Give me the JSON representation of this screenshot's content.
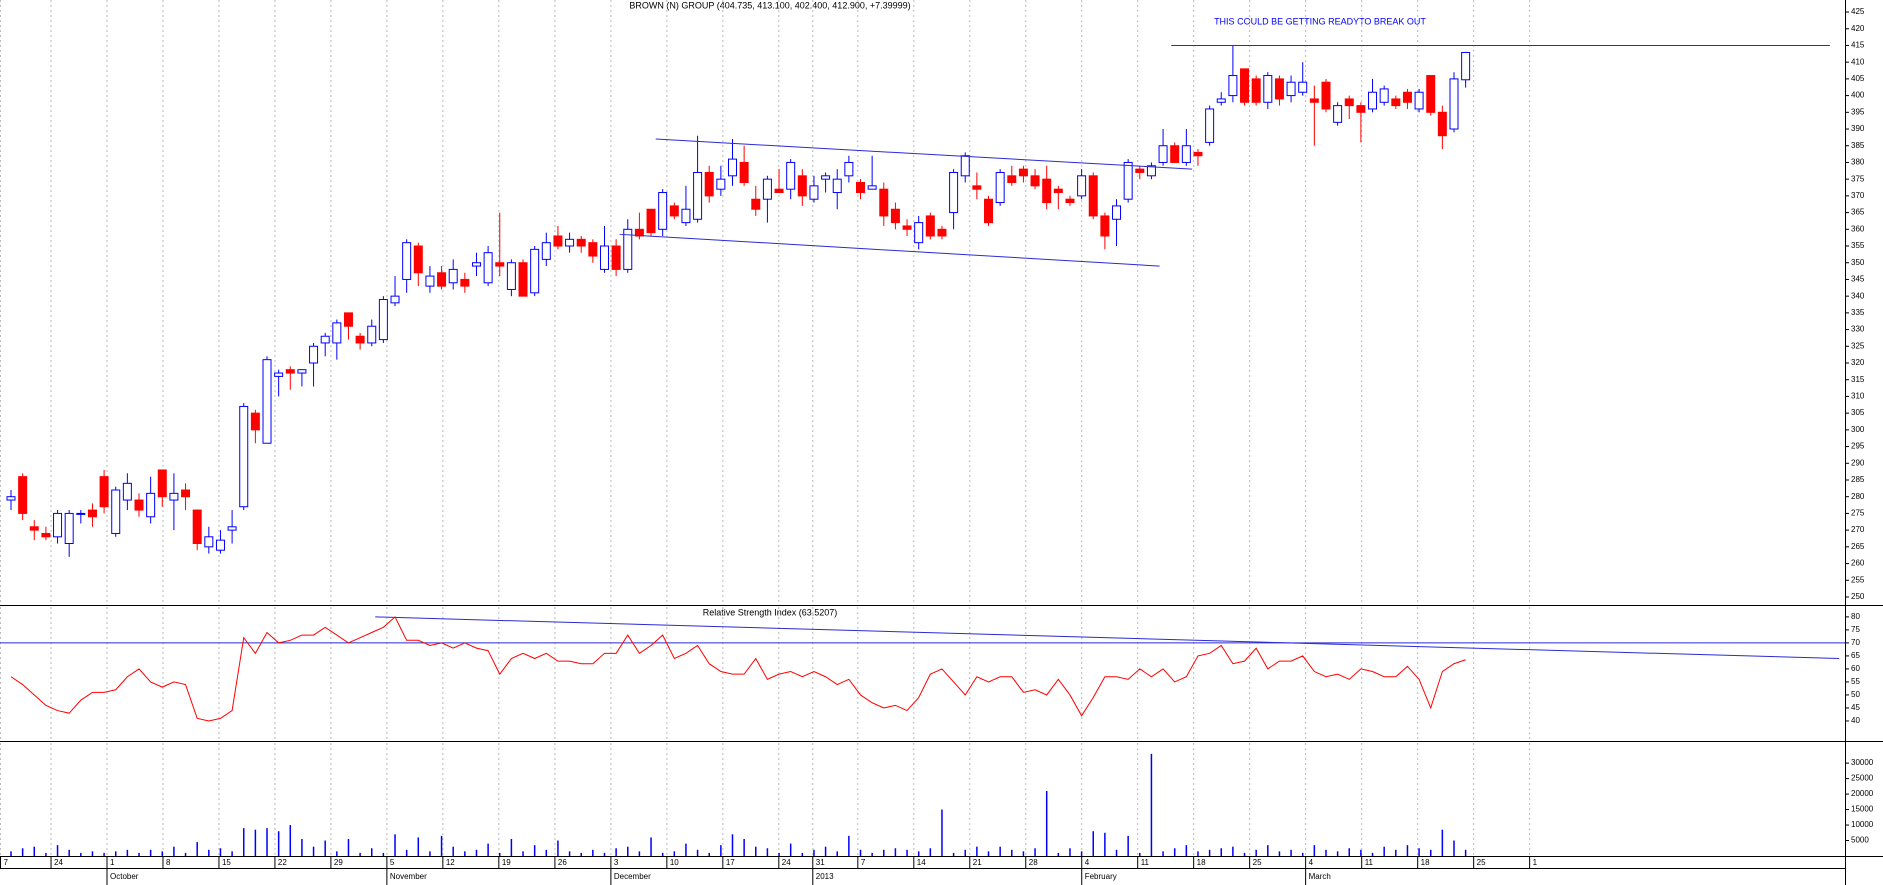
{
  "chart_data": [
    {
      "type": "candlestick",
      "title": "BROWN (N) GROUP (404.735, 413.100, 402.400, 412.900, +7.39999)",
      "annotation": "THIS COULD BE GETTING READYTO BREAK OUT",
      "up_color": "#0000ff",
      "down_color": "#ff0000",
      "trend_color": "#2a2ad6",
      "ylim": [
        247.6,
        428.6
      ],
      "yticks": [
        250,
        255,
        260,
        265,
        270,
        275,
        280,
        285,
        290,
        295,
        300,
        305,
        310,
        315,
        320,
        325,
        330,
        335,
        340,
        345,
        350,
        355,
        360,
        365,
        370,
        375,
        380,
        385,
        390,
        395,
        400,
        405,
        410,
        415,
        420,
        425
      ],
      "series": {
        "open": [
          279,
          286,
          271,
          269,
          268,
          266,
          275,
          276,
          286,
          269,
          279,
          279,
          274,
          288,
          279,
          282,
          276,
          265,
          264,
          270,
          277,
          305,
          296,
          316,
          318,
          317,
          320,
          326,
          326,
          335,
          328,
          326,
          327,
          338,
          345,
          355,
          343,
          347,
          344,
          345,
          349,
          344,
          350,
          342,
          350,
          341,
          351,
          358,
          355,
          357,
          356,
          348,
          355,
          348,
          360,
          366,
          360,
          367,
          362,
          363,
          377,
          372,
          376,
          380,
          369,
          369,
          372,
          372,
          376,
          369,
          375,
          371,
          376,
          374,
          372,
          372,
          366,
          361,
          356,
          364,
          360,
          365,
          376,
          373,
          369,
          368,
          376,
          378,
          376,
          375,
          372,
          369,
          370,
          376,
          364,
          363,
          369,
          378,
          376,
          380,
          385,
          380,
          383,
          386,
          398,
          400,
          408,
          405,
          398,
          405,
          400,
          401,
          399,
          404,
          392,
          399,
          397,
          396,
          398,
          399,
          401,
          396,
          406,
          395,
          390,
          404.735
        ],
        "high": [
          282,
          287,
          273,
          271,
          276,
          276,
          276,
          278,
          288,
          283,
          287,
          281,
          286,
          288,
          287,
          284,
          276,
          271,
          270,
          276,
          308,
          306,
          322,
          318,
          319,
          318,
          326,
          329,
          333,
          335,
          329,
          333,
          340,
          346,
          357,
          356,
          349,
          349,
          351,
          347,
          353,
          355,
          365,
          351,
          351,
          355,
          359,
          361,
          359,
          358,
          357,
          361,
          357,
          363,
          365,
          366,
          372,
          368,
          373,
          388,
          379,
          379,
          387,
          385,
          373,
          376,
          378,
          381,
          378,
          376,
          377,
          378,
          382,
          375,
          382,
          374,
          368,
          363,
          364,
          365,
          361,
          378,
          383,
          377,
          370,
          378,
          379,
          379,
          378,
          379,
          373,
          370,
          378,
          377,
          365,
          369,
          381,
          379,
          380,
          390,
          386,
          390,
          384,
          397,
          401,
          415,
          408,
          406,
          407,
          406,
          406,
          410,
          403,
          405,
          398,
          400,
          398,
          405,
          403,
          400,
          402,
          402,
          406,
          397,
          407,
          413.1
        ],
        "low": [
          276,
          273,
          267,
          267,
          266,
          262,
          272,
          271,
          275,
          268,
          276,
          274,
          272,
          277,
          270,
          276,
          264,
          263,
          263,
          266,
          276,
          296,
          296,
          310,
          312,
          313,
          313,
          322,
          321,
          327,
          324,
          325,
          326,
          337,
          341,
          343,
          341,
          342,
          342,
          341,
          346,
          343,
          346,
          340,
          340,
          340,
          349,
          354,
          353,
          353,
          350,
          347,
          346,
          347,
          357,
          358,
          358,
          363,
          361,
          362,
          368,
          370,
          373,
          373,
          364,
          362,
          371,
          369,
          367,
          368,
          371,
          366,
          374,
          369,
          372,
          361,
          360,
          358,
          354,
          357,
          357,
          360,
          374,
          369,
          361,
          367,
          373,
          374,
          372,
          366,
          366,
          367,
          369,
          363,
          354,
          355,
          368,
          375,
          375,
          379,
          380,
          379,
          379,
          385,
          397,
          398,
          397,
          397,
          396,
          397,
          398,
          400,
          385,
          395,
          391,
          393,
          386,
          395,
          397,
          396,
          396,
          395,
          394,
          384,
          389,
          402.4
        ],
        "close": [
          280,
          275,
          270,
          268,
          275,
          275,
          275,
          274,
          277,
          282,
          284,
          276,
          281,
          280,
          281,
          280,
          266,
          268,
          267,
          271,
          307,
          300,
          321,
          317,
          317,
          318,
          325,
          328,
          332,
          331,
          326,
          331,
          339,
          340,
          356,
          347,
          346,
          343,
          348,
          343,
          350,
          353,
          349,
          350,
          340,
          354,
          356,
          355,
          357,
          355,
          352,
          355,
          348,
          360,
          358,
          359,
          371,
          364,
          366,
          377,
          370,
          375,
          381,
          374,
          366,
          375,
          371,
          380,
          370,
          373,
          376,
          375,
          380,
          371,
          373,
          364,
          362,
          360,
          362,
          358,
          358,
          377,
          382,
          372,
          362,
          377,
          374,
          376,
          373,
          368,
          371,
          368,
          376,
          364,
          358,
          367,
          380,
          377,
          379,
          385,
          380,
          385,
          382,
          396,
          399,
          406,
          398,
          398,
          406,
          399,
          404,
          404,
          398,
          396,
          397,
          397,
          395,
          401,
          402,
          397,
          398,
          401,
          395,
          388,
          405,
          412.9
        ]
      },
      "trendlines": [
        {
          "x": [
            55.4,
            101.5
          ],
          "y": [
            387,
            378
          ]
        },
        {
          "x": [
            52.3,
            98.7
          ],
          "y": [
            358.5,
            349
          ]
        },
        {
          "x": [
            99.7,
            156.3
          ],
          "y": [
            415,
            415
          ]
        }
      ]
    },
    {
      "type": "line",
      "title": "Relative Strength Index (63.5207)",
      "color": "#ff0000",
      "trend_color": "#2a2ad6",
      "ylim": [
        32.3,
        83.8
      ],
      "yticks": [
        40,
        45,
        50,
        55,
        60,
        65,
        70,
        75,
        80
      ],
      "values": [
        57,
        54,
        50,
        46,
        44,
        43,
        48,
        51,
        51,
        52,
        57,
        60,
        55,
        53,
        55,
        54,
        41,
        40,
        41,
        44,
        72,
        66,
        74,
        70,
        71,
        73,
        73,
        76,
        73,
        70,
        72,
        74,
        76,
        80,
        71,
        71,
        69,
        70,
        68,
        70,
        68,
        67,
        58,
        64,
        66,
        64,
        66,
        63,
        63,
        62,
        62,
        66,
        66,
        73,
        66,
        69,
        73,
        64,
        66,
        69,
        62,
        59,
        58,
        58,
        64,
        56,
        58,
        59,
        57,
        59,
        57,
        54,
        56,
        50,
        47,
        45,
        46,
        44,
        49,
        58,
        60,
        55,
        50,
        57,
        55,
        57,
        57,
        51,
        52,
        50,
        56,
        50,
        42,
        49,
        57,
        57,
        56,
        60,
        57,
        60,
        55,
        57,
        65,
        66,
        69,
        62,
        63,
        68,
        60,
        63,
        63,
        65,
        59,
        57,
        58,
        56,
        60,
        59,
        57,
        57,
        61,
        56,
        45,
        59,
        62,
        63.52
      ],
      "trendlines": [
        {
          "x": [
            -0.945,
            157.6
          ],
          "y": [
            70,
            70
          ]
        },
        {
          "x": [
            31.3,
            157.1
          ],
          "y": [
            80,
            64
          ]
        }
      ]
    },
    {
      "type": "bar",
      "color": "#0000ff",
      "ylim": [
        0,
        36500
      ],
      "yticks": [
        5000,
        10000,
        15000,
        20000,
        25000,
        30000
      ],
      "values": [
        1500,
        2500,
        3000,
        1000,
        3500,
        2000,
        1000,
        1500,
        1000,
        1500,
        2000,
        1000,
        2000,
        1500,
        3000,
        1000,
        4500,
        2000,
        2500,
        1500,
        9000,
        8500,
        9000,
        8000,
        10000,
        5500,
        3000,
        5000,
        1500,
        5500,
        1000,
        2500,
        1000,
        7000,
        2000,
        6000,
        1500,
        6500,
        3000,
        1500,
        2000,
        4000,
        1000,
        5500,
        1500,
        3500,
        2000,
        5000,
        1500,
        1000,
        2000,
        1000,
        2500,
        3000,
        1500,
        6000,
        1000,
        1500,
        4000,
        2000,
        1000,
        3500,
        7000,
        5500,
        3000,
        2500,
        1000,
        4000,
        1000,
        2000,
        3000,
        1500,
        6500,
        2000,
        1000,
        2000,
        2500,
        2000,
        1500,
        2500,
        15000,
        1000,
        2000,
        3000,
        1500,
        3000,
        2000,
        1500,
        2500,
        21000,
        1000,
        2500,
        1500,
        8000,
        7500,
        2000,
        6500,
        1000,
        33000,
        1500,
        2500,
        3500,
        1500,
        2000,
        2500,
        3000,
        1000,
        2000,
        3500,
        1500,
        2000,
        1000,
        3500,
        2000,
        1500,
        2500,
        2000,
        1000,
        3000,
        2000,
        3500,
        2500,
        2000,
        8500,
        5000,
        2000
      ],
      "xlim": [
        -0.945,
        157.6
      ],
      "xticks": [
        {
          "value": -0.9,
          "label": "7"
        },
        {
          "value": 3.44,
          "label": "24"
        },
        {
          "value": 8.25,
          "label": "1"
        },
        {
          "value": 13.06,
          "label": "8"
        },
        {
          "value": 17.87,
          "label": "15"
        },
        {
          "value": 22.68,
          "label": "22"
        },
        {
          "value": 27.49,
          "label": "29"
        },
        {
          "value": 32.3,
          "label": "5"
        },
        {
          "value": 37.11,
          "label": "12"
        },
        {
          "value": 41.92,
          "label": "19"
        },
        {
          "value": 46.74,
          "label": "26"
        },
        {
          "value": 51.55,
          "label": "3"
        },
        {
          "value": 56.36,
          "label": "10"
        },
        {
          "value": 61.17,
          "label": "17"
        },
        {
          "value": 65.98,
          "label": "24"
        },
        {
          "value": 68.9,
          "label": "31"
        },
        {
          "value": 72.77,
          "label": "7"
        },
        {
          "value": 77.58,
          "label": "14"
        },
        {
          "value": 82.39,
          "label": "21"
        },
        {
          "value": 87.2,
          "label": "28"
        },
        {
          "value": 92.01,
          "label": "4"
        },
        {
          "value": 96.82,
          "label": "11"
        },
        {
          "value": 101.63,
          "label": "18"
        },
        {
          "value": 106.44,
          "label": "25"
        },
        {
          "value": 111.25,
          "label": "4"
        },
        {
          "value": 116.07,
          "label": "11"
        },
        {
          "value": 120.88,
          "label": "18"
        },
        {
          "value": 125.69,
          "label": "25"
        },
        {
          "value": 130.5,
          "label": "1"
        }
      ],
      "month_labels": [
        {
          "value": 8.25,
          "label": "October"
        },
        {
          "value": 32.3,
          "label": "November"
        },
        {
          "value": 51.55,
          "label": "December"
        },
        {
          "value": 68.9,
          "label": "2013"
        },
        {
          "value": 92.01,
          "label": "February"
        },
        {
          "value": 111.25,
          "label": "March"
        }
      ]
    }
  ]
}
